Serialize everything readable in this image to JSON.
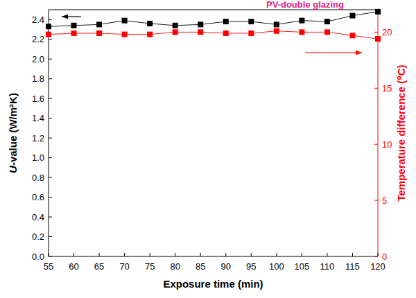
{
  "chart_data": {
    "type": "line",
    "title": "PV-double glazing",
    "x_label": "Exposure time (min)",
    "y_label": "U-value (W/m²K)",
    "y2_label": "Temperature difference (⁰C)",
    "x": [
      55,
      60,
      65,
      70,
      75,
      80,
      85,
      90,
      95,
      100,
      105,
      110,
      115,
      120
    ],
    "series": [
      {
        "name": "U-value",
        "color": "#000000",
        "marker": "square",
        "line_style": "solid",
        "values": [
          2.33,
          2.34,
          2.35,
          2.39,
          2.36,
          2.34,
          2.35,
          2.38,
          2.38,
          2.35,
          2.39,
          2.38,
          2.44,
          2.48
        ]
      },
      {
        "name": "Temperature difference",
        "color": "#ff0000",
        "marker": "square",
        "line_style": "solid",
        "axis": "y2",
        "values": [
          19.8,
          19.9,
          19.9,
          19.8,
          19.8,
          20.0,
          20.0,
          19.9,
          19.9,
          20.1,
          20.0,
          20.0,
          19.7,
          19.4
        ]
      }
    ],
    "xlim": [
      55,
      120
    ],
    "xticks": [
      55,
      60,
      65,
      70,
      75,
      80,
      85,
      90,
      95,
      100,
      105,
      110,
      115,
      120
    ],
    "ylim": [
      0,
      2.5
    ],
    "yticks": [
      {
        "value": 0,
        "label": "0.0"
      },
      {
        "value": 0.2,
        "label": "0.2"
      },
      {
        "value": 0.4,
        "label": "0.4"
      },
      {
        "value": 0.6,
        "label": "0.6"
      },
      {
        "value": 0.8,
        "label": "0.8"
      },
      {
        "value": 1,
        "label": "1.0"
      },
      {
        "value": 1.2,
        "label": "1.2"
      },
      {
        "value": 1.4,
        "label": "1.4"
      },
      {
        "value": 1.6,
        "label": "1.6"
      },
      {
        "value": 1.8,
        "label": "1.8"
      },
      {
        "value": 2,
        "label": "2.0"
      },
      {
        "value": 2.2,
        "label": "2.2"
      },
      {
        "value": 2.4,
        "label": "2.4"
      }
    ],
    "y2lim": [
      0,
      22
    ],
    "y2ticks": [
      0,
      5,
      10,
      15,
      20
    ],
    "grid": false
  }
}
